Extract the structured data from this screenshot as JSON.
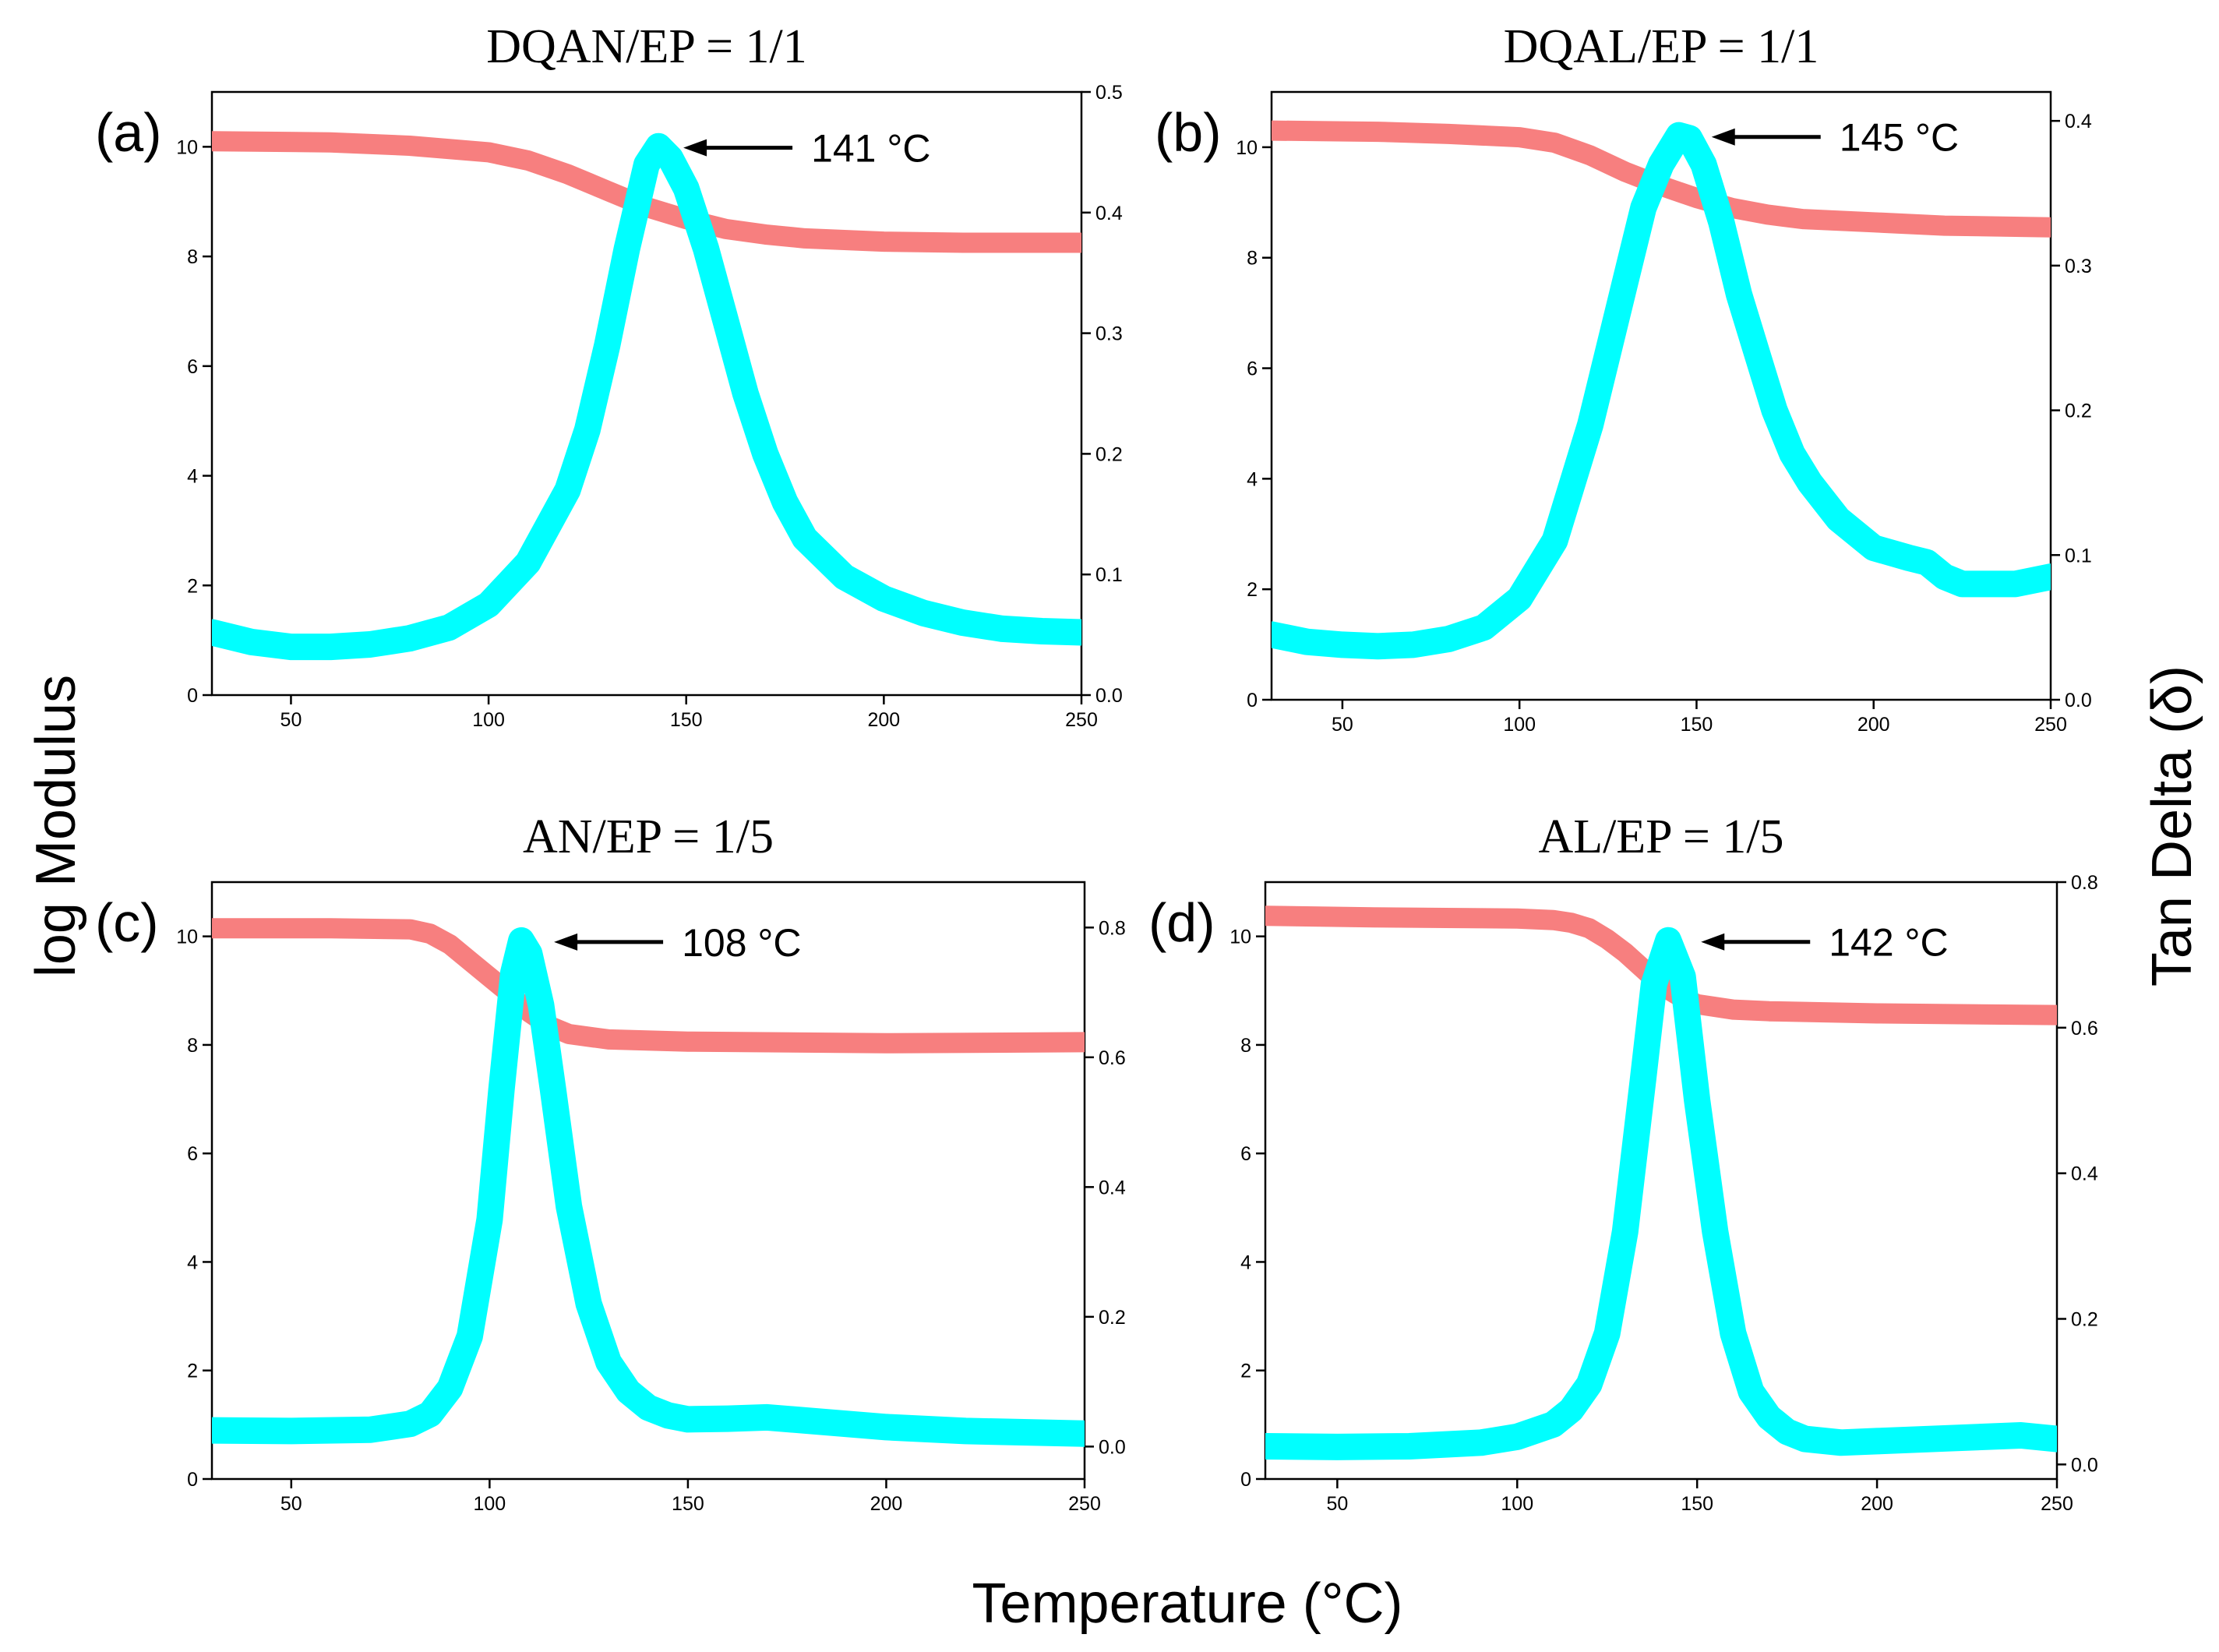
{
  "figure": {
    "xlabel": "Temperature (°C)",
    "ylabel_left": "log Modulus",
    "ylabel_right": "Tan Delta (δ)"
  },
  "colors": {
    "modulus": "#f77f7f",
    "tan_delta": "#00ffff",
    "axes": "#000000"
  },
  "chart_data": [
    {
      "type": "line",
      "panel": "(a)",
      "title": "DQAN/EP = 1/1",
      "xlim": [
        30,
        250
      ],
      "xticks": [
        50,
        100,
        150,
        200,
        250
      ],
      "ylim": [
        0,
        11
      ],
      "yticks": [
        0,
        2,
        4,
        6,
        8,
        10
      ],
      "y2lim": [
        0,
        0.5
      ],
      "y2ticks": [
        0.0,
        0.1,
        0.2,
        0.3,
        0.4,
        0.5
      ],
      "series": [
        {
          "axis": "left",
          "x": [
            30,
            60,
            80,
            100,
            110,
            120,
            130,
            140,
            150,
            160,
            170,
            180,
            200,
            220,
            250
          ],
          "y": [
            10.1,
            10.08,
            10.02,
            9.9,
            9.75,
            9.5,
            9.2,
            8.9,
            8.68,
            8.5,
            8.4,
            8.33,
            8.27,
            8.25,
            8.25
          ]
        },
        {
          "axis": "right",
          "x": [
            30,
            40,
            50,
            60,
            70,
            80,
            90,
            100,
            110,
            120,
            125,
            130,
            135,
            140,
            143,
            146,
            150,
            155,
            160,
            165,
            170,
            175,
            180,
            190,
            200,
            210,
            220,
            230,
            240,
            250
          ],
          "y": [
            0.052,
            0.044,
            0.04,
            0.04,
            0.042,
            0.047,
            0.056,
            0.075,
            0.11,
            0.17,
            0.22,
            0.29,
            0.37,
            0.44,
            0.455,
            0.445,
            0.42,
            0.37,
            0.31,
            0.25,
            0.2,
            0.16,
            0.13,
            0.098,
            0.08,
            0.068,
            0.06,
            0.055,
            0.053,
            0.052
          ]
        }
      ],
      "annotation": {
        "text": "141 °C",
        "x": 141
      }
    },
    {
      "type": "line",
      "panel": "(b)",
      "title": "DQAL/EP = 1/1",
      "xlim": [
        30,
        250
      ],
      "xticks": [
        50,
        100,
        150,
        200,
        250
      ],
      "ylim": [
        0,
        11
      ],
      "yticks": [
        0,
        2,
        4,
        6,
        8,
        10
      ],
      "y2lim": [
        0,
        0.42
      ],
      "y2ticks": [
        0.0,
        0.1,
        0.2,
        0.3,
        0.4
      ],
      "series": [
        {
          "axis": "left",
          "x": [
            30,
            60,
            80,
            100,
            110,
            120,
            130,
            140,
            150,
            160,
            170,
            180,
            200,
            220,
            250
          ],
          "y": [
            10.3,
            10.28,
            10.24,
            10.18,
            10.08,
            9.85,
            9.55,
            9.3,
            9.08,
            8.9,
            8.78,
            8.7,
            8.64,
            8.58,
            8.55
          ]
        },
        {
          "axis": "right",
          "x": [
            30,
            40,
            50,
            60,
            70,
            80,
            90,
            100,
            110,
            120,
            125,
            130,
            135,
            140,
            145,
            148,
            152,
            157,
            162,
            167,
            172,
            177,
            182,
            190,
            200,
            210,
            215,
            220,
            225,
            230,
            240,
            250
          ],
          "y": [
            0.045,
            0.04,
            0.038,
            0.037,
            0.038,
            0.042,
            0.05,
            0.07,
            0.11,
            0.19,
            0.24,
            0.29,
            0.34,
            0.37,
            0.39,
            0.388,
            0.37,
            0.33,
            0.28,
            0.24,
            0.2,
            0.17,
            0.15,
            0.125,
            0.105,
            0.098,
            0.095,
            0.085,
            0.08,
            0.08,
            0.08,
            0.085
          ]
        }
      ],
      "annotation": {
        "text": "145 °C",
        "x": 145
      }
    },
    {
      "type": "line",
      "panel": "(c)",
      "title": "AN/EP = 1/5",
      "xlim": [
        30,
        250
      ],
      "xticks": [
        50,
        100,
        150,
        200,
        250
      ],
      "ylim": [
        0,
        11
      ],
      "yticks": [
        0,
        2,
        4,
        6,
        8,
        10
      ],
      "y2lim": [
        -0.05,
        0.87
      ],
      "y2ticks": [
        0.0,
        0.2,
        0.4,
        0.6,
        0.8
      ],
      "series": [
        {
          "axis": "left",
          "x": [
            30,
            60,
            80,
            85,
            90,
            95,
            100,
            105,
            110,
            115,
            120,
            130,
            150,
            200,
            250
          ],
          "y": [
            10.15,
            10.15,
            10.13,
            10.05,
            9.85,
            9.55,
            9.25,
            8.95,
            8.6,
            8.35,
            8.2,
            8.1,
            8.06,
            8.03,
            8.05
          ]
        },
        {
          "axis": "right",
          "x": [
            30,
            50,
            70,
            80,
            85,
            90,
            95,
            100,
            103,
            106,
            108,
            110,
            113,
            116,
            120,
            125,
            130,
            135,
            140,
            145,
            150,
            160,
            170,
            180,
            200,
            220,
            250
          ],
          "y": [
            0.025,
            0.024,
            0.026,
            0.035,
            0.05,
            0.09,
            0.17,
            0.35,
            0.55,
            0.73,
            0.78,
            0.76,
            0.68,
            0.55,
            0.37,
            0.22,
            0.13,
            0.085,
            0.06,
            0.048,
            0.042,
            0.043,
            0.045,
            0.04,
            0.03,
            0.024,
            0.02
          ]
        }
      ],
      "annotation": {
        "text": "108 °C",
        "x": 108
      }
    },
    {
      "type": "line",
      "panel": "(d)",
      "title": "AL/EP = 1/5",
      "xlim": [
        30,
        250
      ],
      "xticks": [
        50,
        100,
        150,
        200,
        250
      ],
      "ylim": [
        0,
        11
      ],
      "yticks": [
        0,
        2,
        4,
        6,
        8,
        10
      ],
      "y2lim": [
        -0.02,
        0.8
      ],
      "y2ticks": [
        0.0,
        0.2,
        0.4,
        0.6,
        0.8
      ],
      "series": [
        {
          "axis": "left",
          "x": [
            30,
            60,
            80,
            100,
            110,
            115,
            120,
            125,
            130,
            135,
            140,
            145,
            150,
            160,
            170,
            200,
            250
          ],
          "y": [
            10.38,
            10.35,
            10.34,
            10.33,
            10.3,
            10.25,
            10.15,
            9.95,
            9.7,
            9.4,
            9.1,
            8.9,
            8.75,
            8.65,
            8.62,
            8.58,
            8.55
          ]
        },
        {
          "axis": "right",
          "x": [
            30,
            50,
            70,
            90,
            100,
            110,
            115,
            120,
            125,
            130,
            135,
            138,
            142,
            146,
            150,
            155,
            160,
            165,
            170,
            175,
            180,
            190,
            200,
            220,
            240,
            250
          ],
          "y": [
            0.025,
            0.024,
            0.025,
            0.03,
            0.038,
            0.055,
            0.075,
            0.11,
            0.18,
            0.32,
            0.53,
            0.66,
            0.72,
            0.67,
            0.5,
            0.32,
            0.18,
            0.1,
            0.065,
            0.045,
            0.035,
            0.03,
            0.032,
            0.036,
            0.04,
            0.035
          ]
        }
      ],
      "annotation": {
        "text": "142 °C",
        "x": 142
      }
    }
  ]
}
